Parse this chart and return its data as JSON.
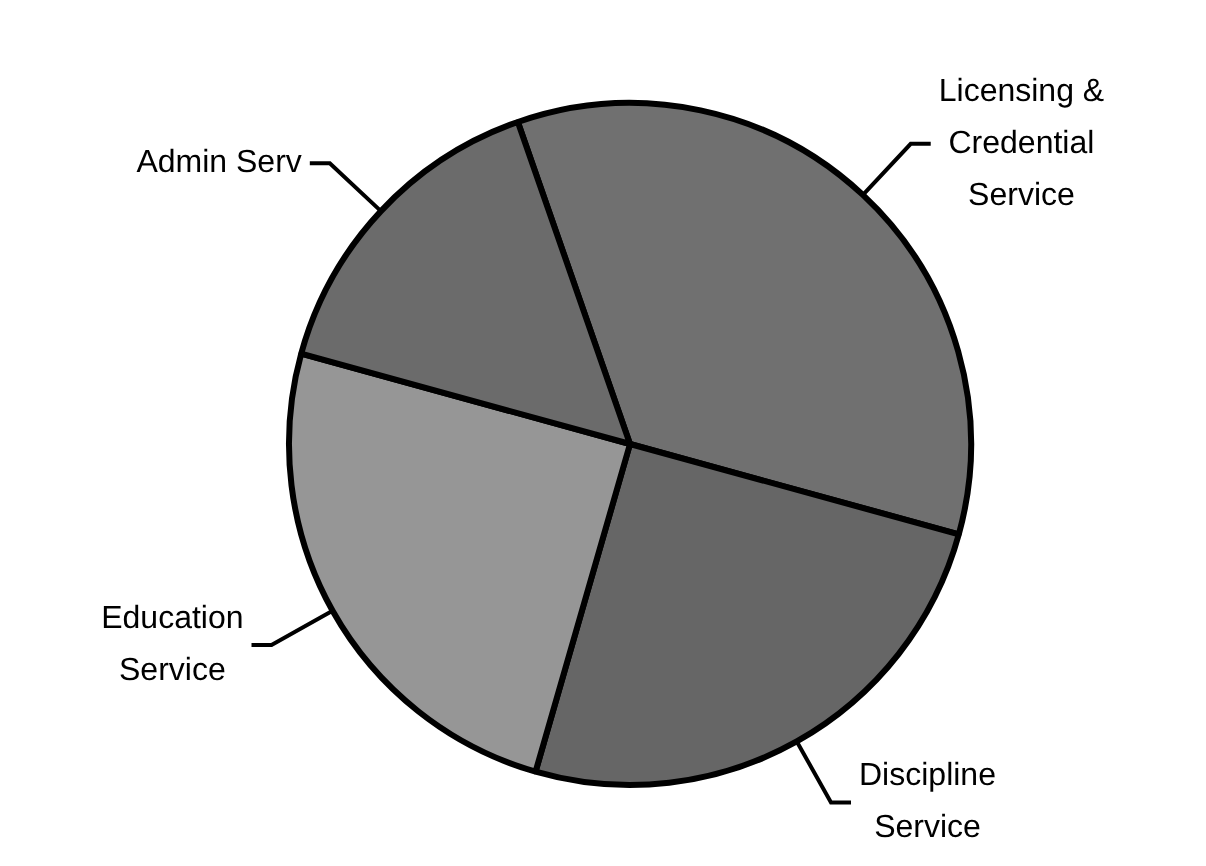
{
  "chart_data": {
    "type": "pie",
    "categories": [
      "Licensing & Credential Service",
      "Discipline Service",
      "Education Service",
      "Admin Serv"
    ],
    "values": [
      34.6,
      25.2,
      24.8,
      15.4
    ],
    "colors": [
      "#707070",
      "#666666",
      "#969696",
      "#6b6b6b"
    ],
    "legend": false
  }
}
